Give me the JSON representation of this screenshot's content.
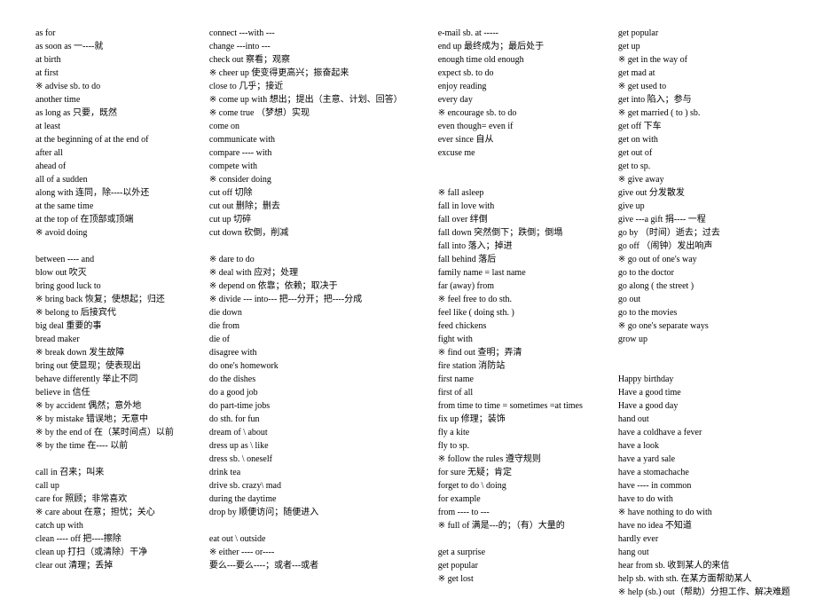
{
  "c1": [
    {
      "t": "as for"
    },
    {
      "t": "as soon as   一----就"
    },
    {
      "t": "at birth"
    },
    {
      "t": "at first"
    },
    {
      "t": "※ advise sb. to do"
    },
    {
      "t": "another time"
    },
    {
      "t": "as long as 只要，既然"
    },
    {
      "t": "at least"
    },
    {
      "t": "at the beginning of      at the end of"
    },
    {
      "t": "after all"
    },
    {
      "t": "ahead of"
    },
    {
      "t": "all of a sudden"
    },
    {
      "t": "along with          连同，除----以外还"
    },
    {
      "t": "at the same time"
    },
    {
      "t": "at the top of       在顶部或顶端"
    },
    {
      "t": "※ avoid doing"
    },
    {
      "t": ""
    },
    {
      "t": "between ---- and"
    },
    {
      "t": "blow out            吹灭"
    },
    {
      "t": "bring good luck to"
    },
    {
      "t": "※ bring back      恢复；使想起；归还"
    },
    {
      "t": "※ belong to       后接宾代"
    },
    {
      "t": "big deal            重要的事"
    },
    {
      "t": "bread maker"
    },
    {
      "t": "※ break down     发生故障"
    },
    {
      "t": "bring out      使显现；使表现出"
    },
    {
      "t": "behave differently      举止不同"
    },
    {
      "t": "believe in         信任"
    },
    {
      "t": "※ by accident      偶然；意外地"
    },
    {
      "t": "※ by mistake       错误地；无意中"
    },
    {
      "t": "※ by the end of     在（某时间点）以前"
    },
    {
      "t": "※ by the time       在---- 以前"
    },
    {
      "t": ""
    },
    {
      "t": "call in         召来；叫来"
    },
    {
      "t": "call up"
    },
    {
      "t": "care for        照顾；非常喜欢"
    },
    {
      "t": "※ care about      在意；担忧；关心"
    },
    {
      "t": "catch up with"
    },
    {
      "t": "clean ---- off     把----擦除"
    },
    {
      "t": "clean up           打扫（或清除）干净"
    },
    {
      "t": "clear out          清理；丢掉"
    }
  ],
  "c2": [
    {
      "t": "connect ---with ---"
    },
    {
      "t": "change ---into ---"
    },
    {
      "t": "check out       察看；观察"
    },
    {
      "t": "※ cheer up         使变得更高兴；振奋起来"
    },
    {
      "t": "close to       几乎；接近"
    },
    {
      "t": "※ come up with  想出；提出（主意、计划、回答）"
    },
    {
      "t": "※ come true   （梦想）实现"
    },
    {
      "t": "come on"
    },
    {
      "t": "communicate with"
    },
    {
      "t": "compare ---- with"
    },
    {
      "t": "compete with"
    },
    {
      "t": "※ consider doing"
    },
    {
      "t": "cut off          切除"
    },
    {
      "t": "cut out          删除；删去"
    },
    {
      "t": "cut up           切碎"
    },
    {
      "t": "cut down        砍倒，削减"
    },
    {
      "t": ""
    },
    {
      "t": "※ dare to do"
    },
    {
      "t": "※ deal with       应对；处理"
    },
    {
      "t": "※ depend on        依靠；依赖；取决于"
    },
    {
      "t": "※ divide --- into---  把---分开；把----分成"
    },
    {
      "t": "die down"
    },
    {
      "t": "die from"
    },
    {
      "t": "die of"
    },
    {
      "t": "disagree with"
    },
    {
      "t": "do one's homework"
    },
    {
      "t": "do the dishes"
    },
    {
      "t": "do a good job"
    },
    {
      "t": "do part-time jobs"
    },
    {
      "t": "do sth. for fun"
    },
    {
      "t": "dream of \\ about"
    },
    {
      "t": "dress up as \\ like"
    },
    {
      "t": "dress sb. \\ oneself"
    },
    {
      "t": "drink tea"
    },
    {
      "t": "drive sb. crazy\\ mad"
    },
    {
      "t": "during the daytime"
    },
    {
      "t": "drop by     顺便访问；随便进入"
    },
    {
      "t": ""
    },
    {
      "t": "eat out \\ outside"
    },
    {
      "t": "※ either ---- or----"
    },
    {
      "t": "          要么---要么----；或者---或者"
    }
  ],
  "c3": [
    {
      "t": "e-mail sb. at -----"
    },
    {
      "t": "end up       最终成为；最后处于"
    },
    {
      "t": "enough time     old enough"
    },
    {
      "t": "expect sb. to do"
    },
    {
      "t": "enjoy reading"
    },
    {
      "t": "every day"
    },
    {
      "t": "※ encourage sb. to do"
    },
    {
      "t": "even though= even if"
    },
    {
      "t": "ever since           自从"
    },
    {
      "t": "excuse me"
    },
    {
      "t": ""
    },
    {
      "t": ""
    },
    {
      "t": "※ fall asleep"
    },
    {
      "t": "fall in love with"
    },
    {
      "t": "fall over    绊倒"
    },
    {
      "t": "fall down   突然倒下；跌倒；倒塌"
    },
    {
      "t": "fall into    落入；掉进"
    },
    {
      "t": "fall behind    落后"
    },
    {
      "t": "family name = last name"
    },
    {
      "t": "far (away) from"
    },
    {
      "t": "※ feel free to do sth."
    },
    {
      "t": "feel like ( doing sth. )"
    },
    {
      "t": "feed chickens"
    },
    {
      "t": "fight with"
    },
    {
      "t": "※ find out         查明；弄清"
    },
    {
      "t": "fire station       消防站"
    },
    {
      "t": "first name"
    },
    {
      "t": "first of all"
    },
    {
      "t": "from time to time = sometimes =at times"
    },
    {
      "t": "fix up        修理；装饰"
    },
    {
      "t": "fly a kite"
    },
    {
      "t": "fly to sp."
    },
    {
      "t": "※ follow the rules       遵守规则"
    },
    {
      "t": "for sure                  无疑；肯定"
    },
    {
      "t": "forget to do \\ doing"
    },
    {
      "t": "for example"
    },
    {
      "t": "from ---- to ---"
    },
    {
      "t": "※ full of      满是---的；（有）大量的"
    },
    {
      "t": ""
    },
    {
      "t": "get a surprise"
    },
    {
      "t": "get popular"
    },
    {
      "t": "※ get lost"
    }
  ],
  "c4": [
    {
      "t": "get popular"
    },
    {
      "t": "get up"
    },
    {
      "t": "※ get in the way of"
    },
    {
      "t": "get mad at"
    },
    {
      "t": "※ get used to"
    },
    {
      "t": "get into          陷入；参与"
    },
    {
      "t": "※ get married ( to ) sb."
    },
    {
      "t": "get off         下车"
    },
    {
      "t": "get on with"
    },
    {
      "t": "get out of"
    },
    {
      "t": "get to sp."
    },
    {
      "t": "※ give away"
    },
    {
      "t": "give out          分发散发"
    },
    {
      "t": "give up"
    },
    {
      "t": "give ---a gift     捐---- 一程"
    },
    {
      "t": "go by     （时间）逝去；过去"
    },
    {
      "t": "go off         （闹钟）发出响声"
    },
    {
      "t": "※ go out of one's way"
    },
    {
      "t": "go to the doctor"
    },
    {
      "t": "go along ( the street )"
    },
    {
      "t": "go out"
    },
    {
      "t": "go to the movies"
    },
    {
      "t": "※ go one's separate ways"
    },
    {
      "t": "grow up"
    },
    {
      "t": ""
    },
    {
      "t": ""
    },
    {
      "t": "Happy birthday"
    },
    {
      "t": "Have a good time"
    },
    {
      "t": "Have a good day"
    },
    {
      "t": "hand out"
    },
    {
      "t": "have a coldhave a fever"
    },
    {
      "t": "have a look"
    },
    {
      "t": "have a yard sale"
    },
    {
      "t": "have a stomachache"
    },
    {
      "t": "have ---- in common"
    },
    {
      "t": "have to do with"
    },
    {
      "t": "※ have nothing to do with"
    },
    {
      "t": "have no idea              不知道"
    },
    {
      "t": "hardly ever"
    },
    {
      "t": "hang out"
    },
    {
      "t": "hear from sb.       收到某人的来信"
    },
    {
      "t": "help sb. with sth.   在某方面帮助某人"
    },
    {
      "t": "※ help (sb.) out（帮助）分担工作、解决难题"
    }
  ]
}
